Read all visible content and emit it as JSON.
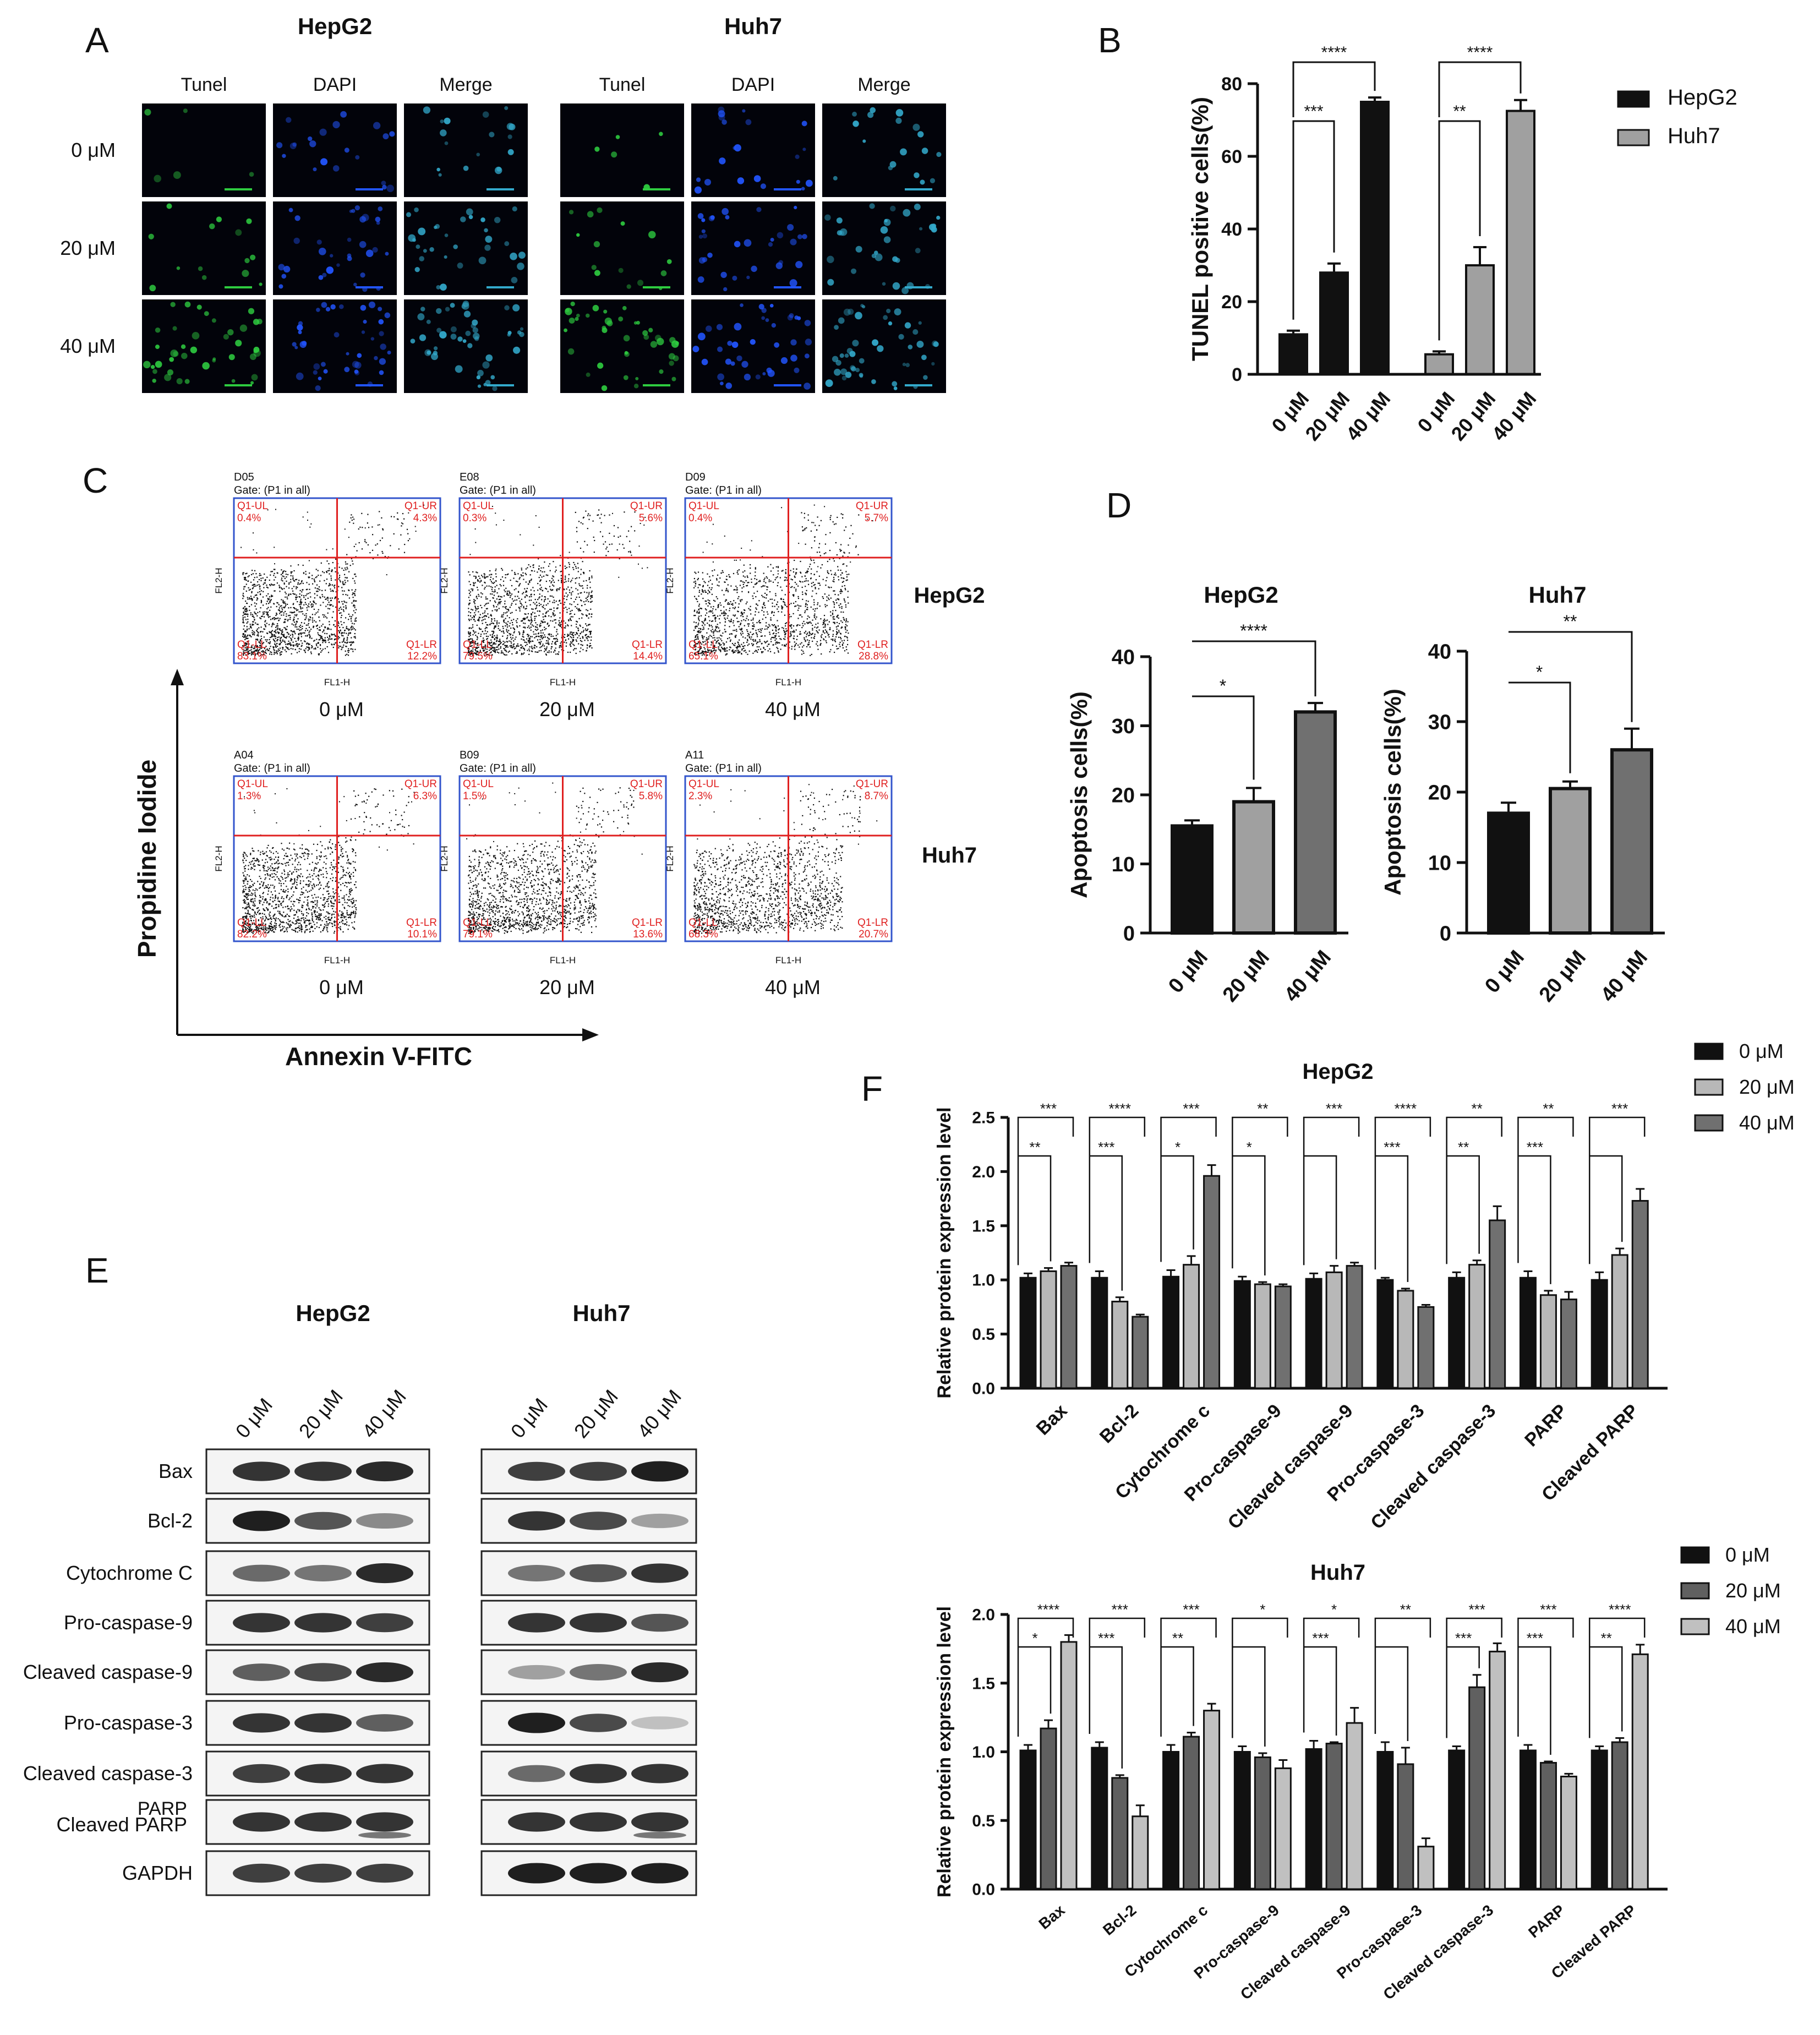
{
  "panels": {
    "A": {
      "label": "A",
      "groups": [
        {
          "name": "HepG2",
          "columns": [
            "Tunel",
            "DAPI",
            "Merge"
          ]
        },
        {
          "name": "Huh7",
          "columns": [
            "Tunel",
            "DAPI",
            "Merge"
          ]
        }
      ],
      "rows": [
        "0 μM",
        "20 μM",
        "40 μM"
      ],
      "colors": {
        "tunel": "#2ecc40",
        "dapi": "#2255ff",
        "merge": "#33aacc"
      }
    },
    "B": {
      "label": "B"
    },
    "C": {
      "label": "C",
      "y_label": "Propidine Iodide",
      "x_label": "Annexin V-FITC",
      "row_labels": [
        "HepG2",
        "Huh7"
      ],
      "dose_labels": [
        "0 μM",
        "20 μM",
        "40 μM"
      ],
      "plot_text": {
        "gate": "Gate: (P1 in all)",
        "q_ul": "Q1-UL",
        "q_ur": "Q1-UR",
        "q_ll": "Q1-LL",
        "q_lr": "Q1-LR",
        "x_axis": "FL1-H",
        "y_axis": "FL2-H"
      },
      "plots": [
        {
          "id": "D05",
          "ul": "0.4%",
          "ur": "4.3%",
          "ll": "83.1%",
          "lr": "12.2%",
          "cloud": 0.55
        },
        {
          "id": "E08",
          "ul": "0.3%",
          "ur": "5.6%",
          "ll": "79.5%",
          "lr": "14.4%",
          "cloud": 0.6
        },
        {
          "id": "D09",
          "ul": "0.4%",
          "ur": "5.7%",
          "ll": "65.1%",
          "lr": "28.8%",
          "cloud": 0.75
        },
        {
          "id": "A04",
          "ul": "1.3%",
          "ur": "6.3%",
          "ll": "82.2%",
          "lr": "10.1%",
          "cloud": 0.55
        },
        {
          "id": "B09",
          "ul": "1.5%",
          "ur": "5.8%",
          "ll": "79.1%",
          "lr": "13.6%",
          "cloud": 0.62
        },
        {
          "id": "A11",
          "ul": "2.3%",
          "ur": "8.7%",
          "ll": "68.3%",
          "lr": "20.7%",
          "cloud": 0.72
        }
      ]
    },
    "D": {
      "label": "D"
    },
    "E": {
      "label": "E",
      "groups": [
        "HepG2",
        "Huh7"
      ],
      "doses": [
        "0 μM",
        "20 μM",
        "40 μM"
      ],
      "proteins": [
        "Bax",
        "Bcl-2",
        "Cytochrome C",
        "Pro-caspase-9",
        "Cleaved caspase-9",
        "Pro-caspase-3",
        "Cleaved caspase-3",
        "PARP",
        "GAPDH"
      ],
      "parp_sub_label": "Cleaved PARP",
      "band_intensity": {
        "HepG2": [
          [
            0.85,
            0.85,
            0.9
          ],
          [
            0.95,
            0.7,
            0.45
          ],
          [
            0.6,
            0.55,
            0.9
          ],
          [
            0.85,
            0.85,
            0.8
          ],
          [
            0.65,
            0.75,
            0.9
          ],
          [
            0.85,
            0.85,
            0.65
          ],
          [
            0.8,
            0.85,
            0.85
          ],
          [
            0.85,
            0.85,
            0.85
          ],
          [
            0.8,
            0.8,
            0.8
          ]
        ],
        "Huh7": [
          [
            0.8,
            0.8,
            0.95
          ],
          [
            0.85,
            0.75,
            0.35
          ],
          [
            0.55,
            0.7,
            0.85
          ],
          [
            0.85,
            0.85,
            0.7
          ],
          [
            0.35,
            0.55,
            0.9
          ],
          [
            0.95,
            0.75,
            0.2
          ],
          [
            0.6,
            0.85,
            0.85
          ],
          [
            0.85,
            0.85,
            0.85
          ],
          [
            0.95,
            0.95,
            0.95
          ]
        ]
      }
    },
    "F": {
      "label": "F"
    }
  },
  "chart_data": [
    {
      "id": "B",
      "type": "bar",
      "ylabel": "TUNEL positive cells(%)",
      "ylim": [
        0,
        80
      ],
      "yticks": [
        0,
        20,
        40,
        60,
        80
      ],
      "categories": [
        "0 μM",
        "20 μM",
        "40 μM"
      ],
      "series": [
        {
          "name": "HepG2",
          "values": [
            11,
            28,
            75
          ],
          "errors": [
            1,
            2.5,
            1.2
          ],
          "color": "#111111"
        },
        {
          "name": "Huh7",
          "values": [
            5.5,
            30,
            72.5
          ],
          "errors": [
            0.8,
            5,
            3
          ],
          "color": "#a0a0a0"
        }
      ],
      "significance": {
        "HepG2": [
          {
            "between": [
              0,
              1
            ],
            "label": "***"
          },
          {
            "between": [
              0,
              2
            ],
            "label": "****"
          }
        ],
        "Huh7": [
          {
            "between": [
              0,
              1
            ],
            "label": "**"
          },
          {
            "between": [
              0,
              2
            ],
            "label": "****"
          }
        ]
      },
      "legend": "right"
    },
    {
      "id": "D-HepG2",
      "type": "bar",
      "title": "HepG2",
      "ylabel": "Apoptosis cells(%)",
      "ylim": [
        0,
        40
      ],
      "yticks": [
        0,
        10,
        20,
        30,
        40
      ],
      "categories": [
        "0 μM",
        "20 μM",
        "40 μM"
      ],
      "values": [
        15.5,
        19,
        32
      ],
      "errors": [
        0.8,
        2,
        1.3
      ],
      "colors": [
        "#111111",
        "#a0a0a0",
        "#707070"
      ],
      "significance": [
        {
          "between": [
            0,
            1
          ],
          "label": "*"
        },
        {
          "between": [
            0,
            2
          ],
          "label": "****"
        }
      ]
    },
    {
      "id": "D-Huh7",
      "type": "bar",
      "title": "Huh7",
      "ylabel": "Apoptosis cells(%)",
      "ylim": [
        0,
        40
      ],
      "yticks": [
        0,
        10,
        20,
        30,
        40
      ],
      "categories": [
        "0 μM",
        "20 μM",
        "40 μM"
      ],
      "values": [
        17,
        20.5,
        26
      ],
      "errors": [
        1.5,
        1,
        3
      ],
      "colors": [
        "#111111",
        "#a0a0a0",
        "#707070"
      ],
      "significance": [
        {
          "between": [
            0,
            1
          ],
          "label": "*"
        },
        {
          "between": [
            0,
            2
          ],
          "label": "**"
        }
      ]
    },
    {
      "id": "F-HepG2",
      "type": "bar",
      "title": "HepG2",
      "ylabel": "Relative protein expression level",
      "ylim": [
        0,
        2.5
      ],
      "yticks": [
        0.0,
        0.5,
        1.0,
        1.5,
        2.0,
        2.5
      ],
      "categories": [
        "Bax",
        "Bcl-2",
        "Cytochrome c",
        "Pro-caspase-9",
        "Cleaved caspase-9",
        "Pro-caspase-3",
        "Cleaved caspase-3",
        "PARP",
        "Cleaved PARP"
      ],
      "series": [
        {
          "name": "0 μM",
          "values": [
            1.02,
            1.02,
            1.03,
            0.99,
            1.01,
            1.0,
            1.02,
            1.02,
            1.0
          ],
          "errors": [
            0.04,
            0.06,
            0.06,
            0.04,
            0.05,
            0.02,
            0.05,
            0.06,
            0.07
          ],
          "color": "#111111"
        },
        {
          "name": "20 μM",
          "values": [
            1.08,
            0.8,
            1.14,
            0.96,
            1.07,
            0.9,
            1.14,
            0.86,
            1.23
          ],
          "errors": [
            0.03,
            0.04,
            0.08,
            0.02,
            0.06,
            0.02,
            0.04,
            0.04,
            0.06
          ],
          "color": "#b8b8b8"
        },
        {
          "name": "40 μM",
          "values": [
            1.13,
            0.66,
            1.96,
            0.94,
            1.13,
            0.75,
            1.55,
            0.82,
            1.73
          ],
          "errors": [
            0.03,
            0.02,
            0.1,
            0.02,
            0.03,
            0.02,
            0.13,
            0.07,
            0.11
          ],
          "color": "#707070"
        }
      ],
      "significance": [
        [
          "**",
          "***"
        ],
        [
          "***",
          "****"
        ],
        [
          "*",
          "***"
        ],
        [
          "*",
          "**"
        ],
        [
          "",
          "***"
        ],
        [
          "***",
          "****"
        ],
        [
          "**",
          "**"
        ],
        [
          "***",
          "**"
        ],
        [
          "",
          "***"
        ]
      ],
      "legend": "top-right"
    },
    {
      "id": "F-Huh7",
      "type": "bar",
      "title": "Huh7",
      "ylabel": "Relative protein expression level",
      "ylim": [
        0,
        2.0
      ],
      "yticks": [
        0.0,
        0.5,
        1.0,
        1.5,
        2.0
      ],
      "categories": [
        "Bax",
        "Bcl-2",
        "Cytochrome c",
        "Pro-caspase-9",
        "Cleaved caspase-9",
        "Pro-caspase-3",
        "Cleaved caspase-3",
        "PARP",
        "Cleaved PARP"
      ],
      "series": [
        {
          "name": "0 μM",
          "values": [
            1.01,
            1.03,
            1.0,
            1.0,
            1.02,
            1.0,
            1.01,
            1.01,
            1.01
          ],
          "errors": [
            0.04,
            0.04,
            0.05,
            0.04,
            0.06,
            0.07,
            0.03,
            0.04,
            0.03
          ],
          "color": "#111111"
        },
        {
          "name": "20 μM",
          "values": [
            1.17,
            0.81,
            1.11,
            0.96,
            1.06,
            0.91,
            1.47,
            0.92,
            1.07
          ],
          "errors": [
            0.06,
            0.02,
            0.03,
            0.03,
            0.01,
            0.12,
            0.09,
            0.01,
            0.03
          ],
          "color": "#606060"
        },
        {
          "name": "40 μM",
          "values": [
            1.8,
            0.53,
            1.3,
            0.88,
            1.21,
            0.31,
            1.73,
            0.82,
            1.71
          ],
          "errors": [
            0.05,
            0.08,
            0.05,
            0.06,
            0.11,
            0.06,
            0.06,
            0.02,
            0.07
          ],
          "color": "#c0c0c0"
        }
      ],
      "significance": [
        [
          "*",
          "****"
        ],
        [
          "***",
          "***"
        ],
        [
          "**",
          "***"
        ],
        [
          "",
          "*"
        ],
        [
          "***",
          "*"
        ],
        [
          "",
          "**"
        ],
        [
          "***",
          "***"
        ],
        [
          "***",
          "***"
        ],
        [
          "**",
          "****"
        ]
      ],
      "legend": "top-right"
    }
  ]
}
